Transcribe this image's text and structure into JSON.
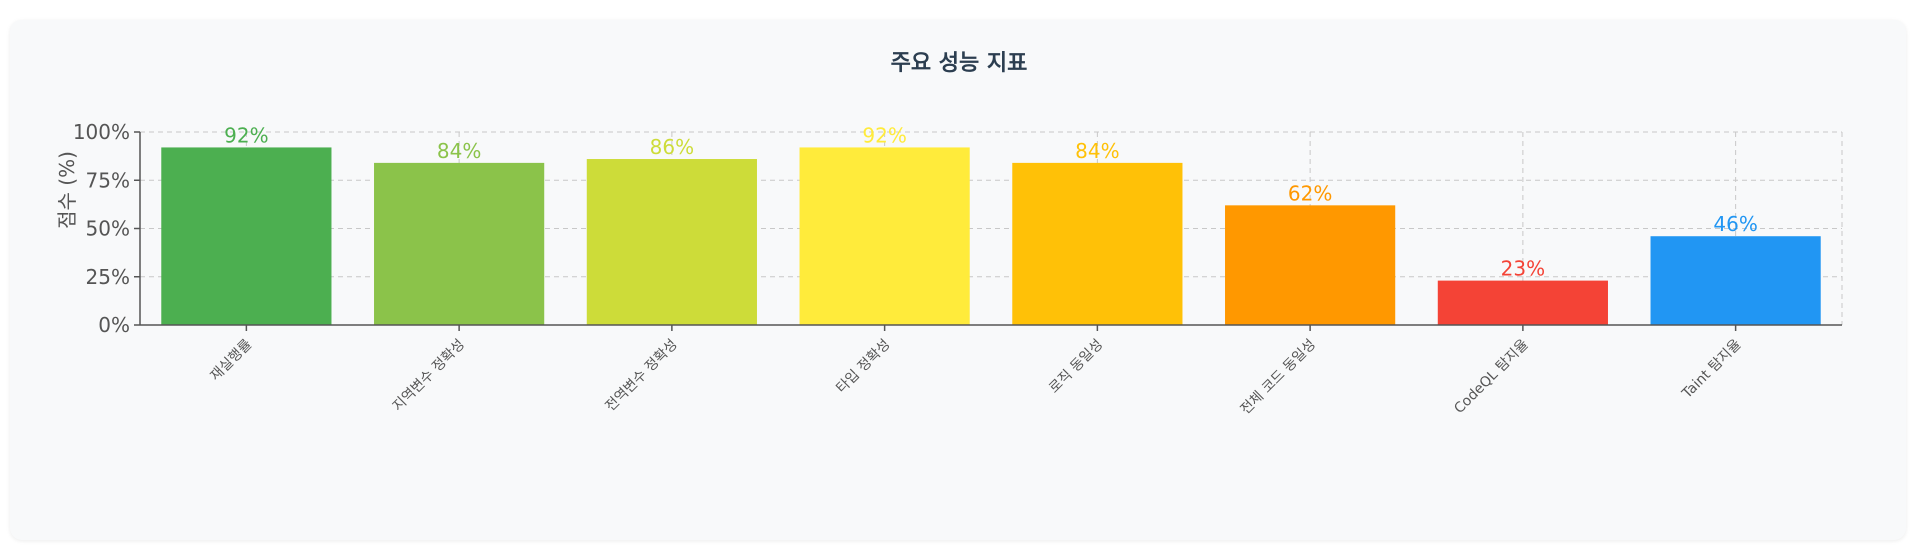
{
  "chart_data": {
    "type": "bar",
    "title": "주요 성능 지표",
    "ylabel": "점수 (%)",
    "xlabel": "",
    "ylim": [
      0,
      100
    ],
    "yticks": [
      "0%",
      "25%",
      "50%",
      "75%",
      "100%"
    ],
    "ytick_values": [
      0,
      25,
      50,
      75,
      100
    ],
    "grid": true,
    "categories": [
      "재실행률",
      "지역변수 정확성",
      "전역변수 정확성",
      "타입 정확성",
      "로직 동일성",
      "전체 코드 동일성",
      "CodeQL 탐지율",
      "Taint 탐지율"
    ],
    "values": [
      92,
      84,
      86,
      92,
      84,
      62,
      23,
      46
    ],
    "value_labels": [
      "92%",
      "84%",
      "86%",
      "92%",
      "84%",
      "62%",
      "23%",
      "46%"
    ],
    "colors": [
      "#4caf50",
      "#8bc34a",
      "#cddc39",
      "#ffeb3b",
      "#ffc107",
      "#ff9800",
      "#f44336",
      "#2196f3"
    ]
  }
}
